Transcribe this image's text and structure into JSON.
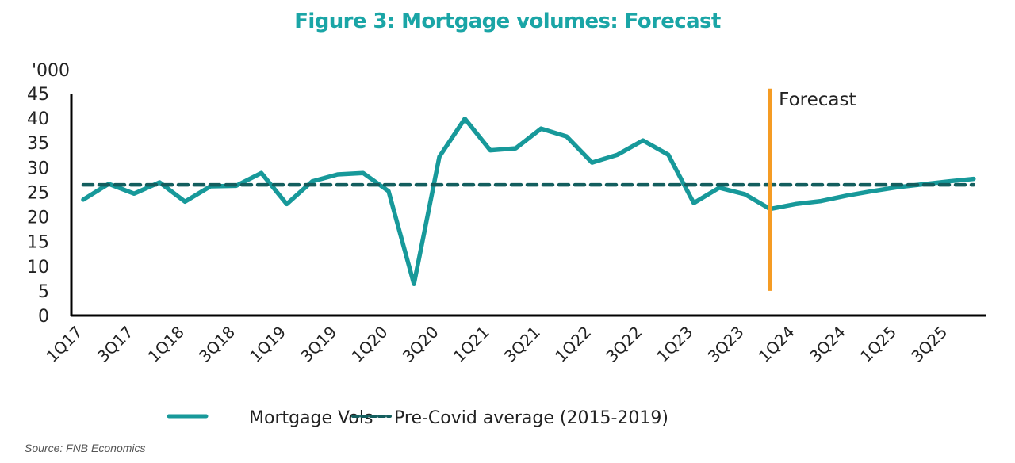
{
  "chart_data": {
    "type": "line",
    "title": "Figure 3: Mortgage volumes: Forecast",
    "ylabel": "'000",
    "xlabel": "",
    "ylim": [
      0,
      45
    ],
    "yticks": [
      0,
      5,
      10,
      15,
      20,
      25,
      30,
      35,
      40,
      45
    ],
    "grid": false,
    "x": [
      "1Q17",
      "2Q17",
      "3Q17",
      "4Q17",
      "1Q18",
      "2Q18",
      "3Q18",
      "4Q18",
      "1Q19",
      "2Q19",
      "3Q19",
      "4Q19",
      "1Q20",
      "2Q20",
      "3Q20",
      "4Q20",
      "1Q21",
      "2Q21",
      "3Q21",
      "4Q21",
      "1Q22",
      "2Q22",
      "3Q22",
      "4Q22",
      "1Q23",
      "2Q23",
      "3Q23",
      "4Q23",
      "1Q24",
      "2Q24",
      "3Q24",
      "4Q24",
      "1Q25",
      "2Q25",
      "3Q25",
      "4Q25"
    ],
    "xtick_labels": [
      "1Q17",
      "3Q17",
      "1Q18",
      "3Q18",
      "1Q19",
      "3Q19",
      "1Q20",
      "3Q20",
      "1Q21",
      "3Q21",
      "1Q22",
      "3Q22",
      "1Q23",
      "3Q23",
      "1Q24",
      "3Q24",
      "1Q25",
      "3Q25"
    ],
    "series": [
      {
        "name": "Mortgage Vols",
        "color": "#17999A",
        "style": "solid",
        "values": [
          23.5,
          26.7,
          24.7,
          27.0,
          23.1,
          26.2,
          26.3,
          28.9,
          22.6,
          27.2,
          28.6,
          28.9,
          25.2,
          6.4,
          32.2,
          39.9,
          33.5,
          33.9,
          37.9,
          36.3,
          31.0,
          32.6,
          35.5,
          32.6,
          22.8,
          25.9,
          24.6,
          21.6,
          22.6,
          23.2,
          24.3,
          25.2,
          26.0,
          26.6,
          27.2,
          27.7
        ]
      },
      {
        "name": "Pre-Covid average (2015-2019)",
        "color": "#135E5E",
        "style": "dashed",
        "values": [
          26.5,
          26.5,
          26.5,
          26.5,
          26.5,
          26.5,
          26.5,
          26.5,
          26.5,
          26.5,
          26.5,
          26.5,
          26.5,
          26.5,
          26.5,
          26.5,
          26.5,
          26.5,
          26.5,
          26.5,
          26.5,
          26.5,
          26.5,
          26.5,
          26.5,
          26.5,
          26.5,
          26.5,
          26.5,
          26.5,
          26.5,
          26.5,
          26.5,
          26.5,
          26.5,
          26.5
        ]
      }
    ],
    "annotations": [
      {
        "type": "vertical-line",
        "at": "4Q23",
        "color": "#F59C24",
        "label": "Forecast",
        "yrange": [
          5,
          46
        ]
      }
    ],
    "legend": {
      "placement": "bottom",
      "entries": [
        "Mortgage Vols",
        "Pre-Covid average (2015-2019)"
      ]
    },
    "source": "Source: FNB Economics"
  }
}
